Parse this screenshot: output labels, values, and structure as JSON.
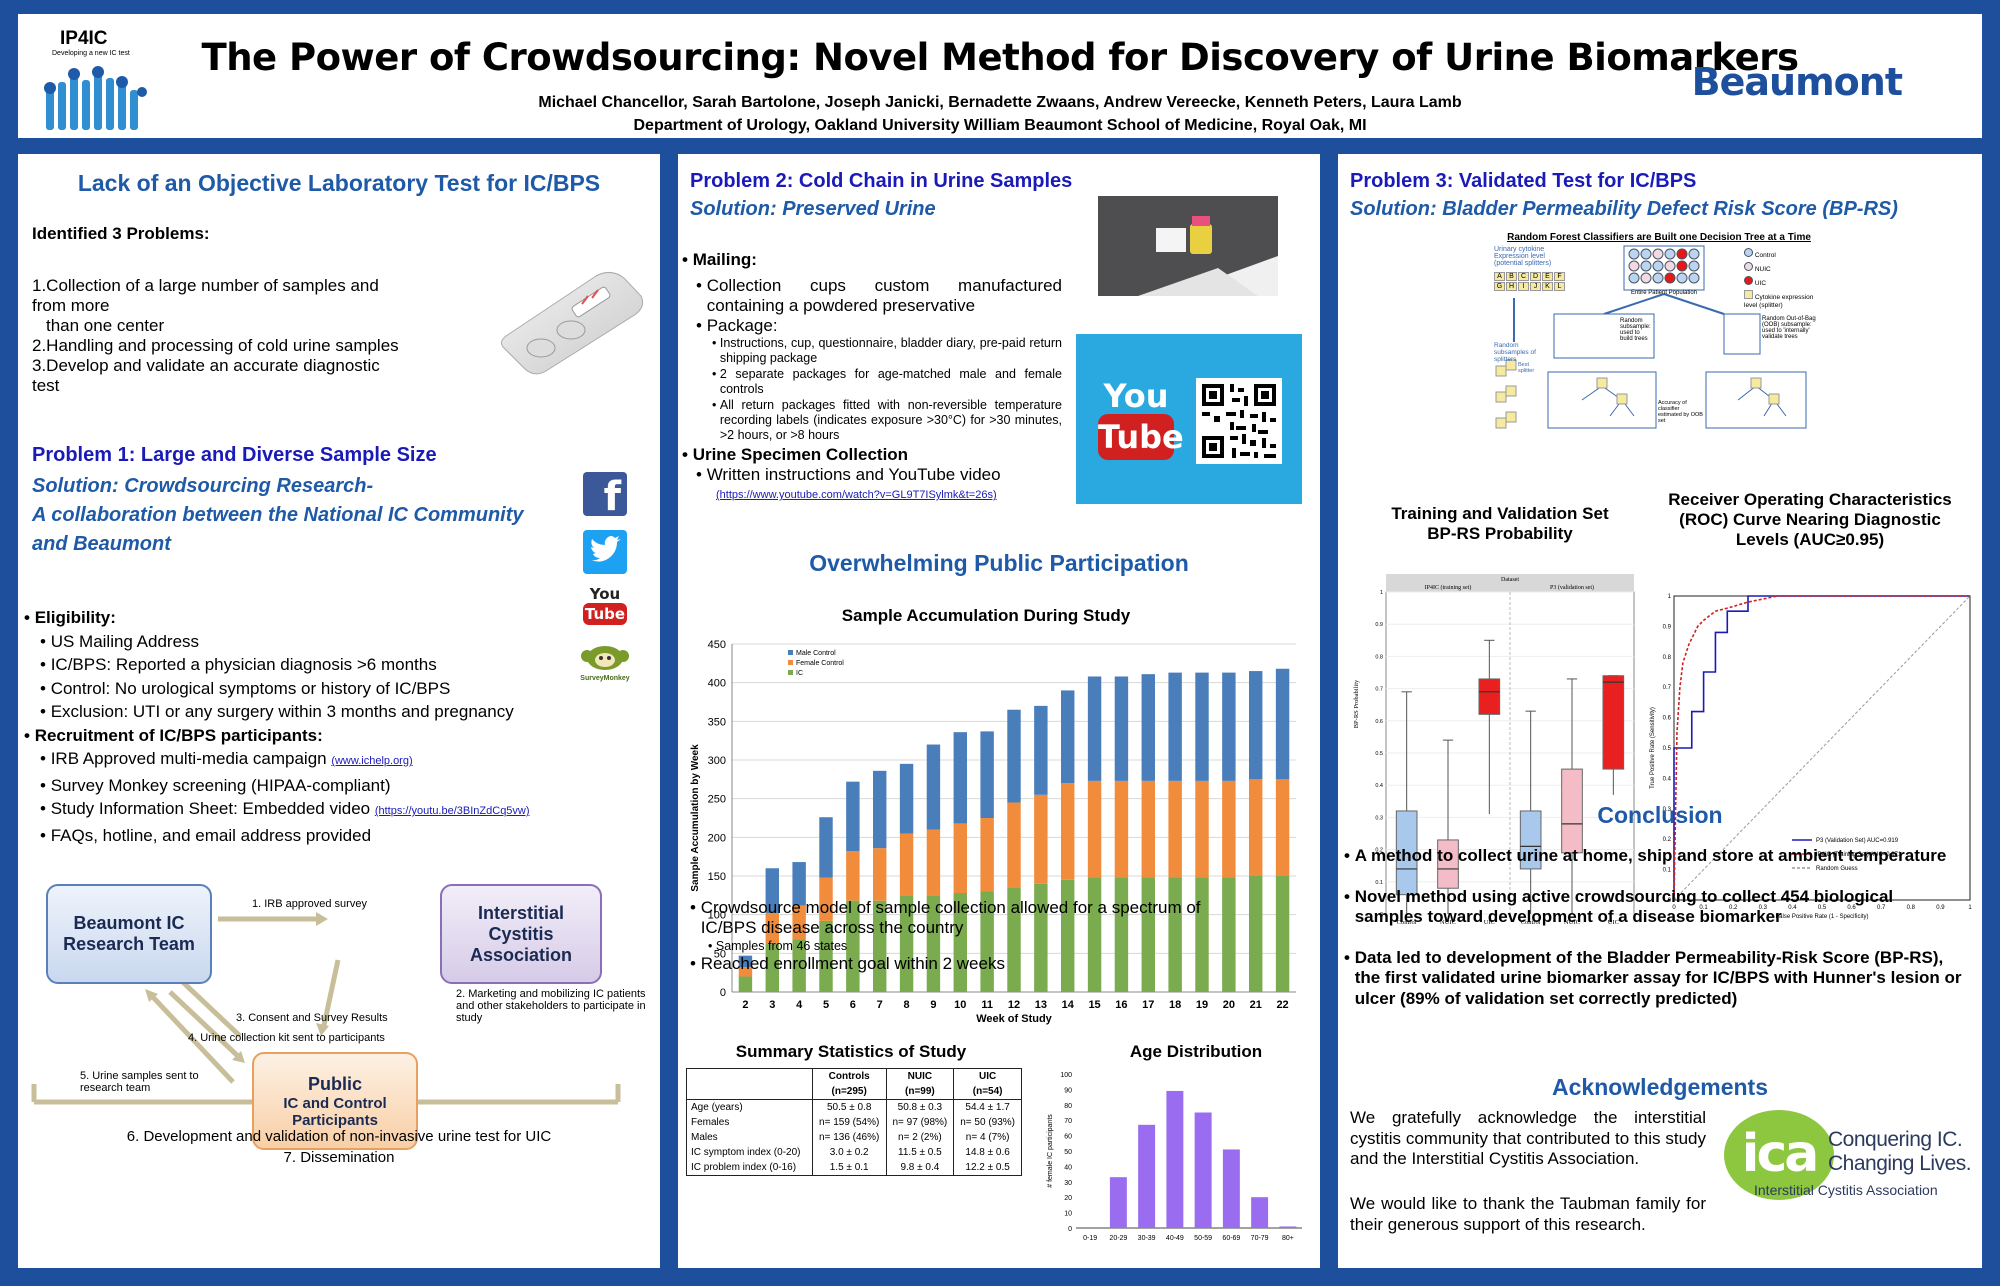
{
  "header": {
    "logo_text": "IP4IC",
    "logo_tagline": "Developing a new IC test",
    "title": "The Power of Crowdsourcing: Novel Method for Discovery of Urine Biomarkers",
    "authors": "Michael Chancellor, Sarah Bartolone, Joseph Janicki, Bernadette Zwaans, Andrew Vereecke, Kenneth Peters, Laura Lamb",
    "department": "Department of Urology, Oakland University William Beaumont School of Medicine, Royal Oak, MI",
    "brand": "Beaumont"
  },
  "col1": {
    "heading": "Lack of an Objective Laboratory Test for IC/BPS",
    "identified": "Identified 3 Problems:",
    "problems": [
      "1.Collection of a large number of samples and from  more",
      "than one center",
      "2.Handling and processing of cold urine samples",
      "3.Develop and validate an accurate diagnostic test"
    ],
    "p1_title": "Problem 1: Large and Diverse Sample Size",
    "p1_sol1": "Solution: Crowdsourcing Research-",
    "p1_sol2": "A collaboration between the National IC Community",
    "p1_sol3": "and Beaumont",
    "eligibility": "Eligibility:",
    "elig_items": [
      "US Mailing Address",
      "IC/BPS: Reported a physician diagnosis >6 months",
      "Control: No urological symptoms or history of IC/BPS",
      "Exclusion: UTI or any surgery within 3 months and pregnancy"
    ],
    "recruitment": "Recruitment of IC/BPS participants:",
    "recruit_1": "IRB Approved multi-media campaign ",
    "recruit_1_link": "(www.ichelp.org)",
    "recruit_2": "Survey Monkey screening (HIPAA-compliant)",
    "recruit_3": "Study Information Sheet: Embedded video ",
    "recruit_3_link": "(https://youtu.be/3BInZdCq5vw)",
    "recruit_4": "FAQs, hotline, and email address provided",
    "social": {
      "youtube_you": "You",
      "youtube_tube": "Tube",
      "surveymonkey": "SurveyMonkey"
    },
    "flow": {
      "box1": "Beaumont IC Research Team",
      "box2": "Interstitial Cystitis Association",
      "box3_1": "Public",
      "box3_2": "IC and Control Participants",
      "step1": "1.  IRB approved survey",
      "step2": "2. Marketing and mobilizing IC patients and other stakeholders to participate in study",
      "step3": "3. Consent and Survey Results",
      "step4": "4. Urine collection kit sent to participants",
      "step5": "5.  Urine samples sent to research team",
      "step6": "6.  Development and validation of non-invasive urine test for UIC",
      "step7": "7.  Dissemination"
    }
  },
  "col2": {
    "p2_title": "Problem 2: Cold Chain in Urine Samples",
    "p2_sol": "Solution: Preserved Urine",
    "mailing": "Mailing:",
    "mail_1": "Collection cups custom manufactured containing a powdered preservative",
    "mail_2": "Package:",
    "pkg_items": [
      "Instructions, cup, questionnaire, bladder diary, pre-paid return shipping package",
      "2 separate packages for age-matched male and female controls",
      "All return packages fitted with non-reversible temperature recording labels (indicates exposure >30°C) for >30 minutes, >2 hours, or >8 hours"
    ],
    "urine_coll": "Urine Specimen Collection",
    "urine_1": "Written instructions and YouTube video",
    "urine_link": "(https://www.youtube.com/watch?v=GL9T7ISylmk&t=26s)",
    "overwhelm": "Overwhelming Public Participation",
    "bullets": [
      "Crowdsource model of sample collection allowed for a spectrum of IC/BPS disease across the country",
      "Samples from 46 states",
      "Reached enrollment goal within 2 weeks"
    ],
    "stats_title": "Summary Statistics of Study",
    "stats_headers": [
      "",
      "Controls",
      "NUIC",
      "UIC"
    ],
    "stats_n": [
      "",
      "(n=295)",
      "(n=99)",
      "(n=54)"
    ],
    "stats_rows": [
      [
        "Age (years)",
        "50.5 ± 0.8",
        "50.8 ± 0.3",
        "54.4 ± 1.7"
      ],
      [
        "Females",
        "n= 159 (54%)",
        "n= 97 (98%)",
        "n= 50 (93%)"
      ],
      [
        "Males",
        "n= 136 (46%)",
        "n= 2 (2%)",
        "n= 4 (7%)"
      ],
      [
        "IC symptom index (0-20)",
        "3.0 ± 0.2",
        "11.5 ± 0.5",
        "14.8 ± 0.6"
      ],
      [
        "IC problem index (0-16)",
        "1.5 ± 0.1",
        "9.8 ± 0.4",
        "12.2 ± 0.5"
      ]
    ]
  },
  "col3": {
    "p3_title": "Problem 3: Validated Test for IC/BPS",
    "p3_sol": "Solution: Bladder Permeability Defect Risk Score (BP-RS)",
    "rf_title": "Random Forest Classifiers are Built one Decision Tree at a Time",
    "rf_left": "Urinary cytokine Expression level (potential splitters)",
    "rf_letters": [
      "A",
      "B",
      "C",
      "D",
      "E",
      "F",
      "G",
      "H",
      "I",
      "J",
      "K",
      "L"
    ],
    "rf_entire": "Entire Patient Population",
    "rf_legend": [
      "Control",
      "NUIC",
      "UIC",
      "Cytokine expression level (splitter)"
    ],
    "rf_random": "Random subsamples of splitters",
    "rf_sub1": "Random subsample: used to build trees",
    "rf_sub2": "Random Out-of-Bag (OOB) subsample: used to 'internally' validate trees",
    "rf_best": "Best splitter",
    "rf_accuracy": "Accuracy of classifier estimated by OOB set",
    "box_title1": "Training and Validation Set",
    "box_title2": "BP-RS Probability",
    "roc_title1": "Receiver Operating Characteristics",
    "roc_title2": "(ROC) Curve Nearing Diagnostic",
    "roc_title3": "Levels (AUC≥0.95)",
    "conclusion": "Conclusion",
    "concl_items": [
      "A method to collect urine at home, ship and store at ambient temperature",
      "Novel method using active crowdsourcing to collect 454 biological samples toward development of a disease biomarker",
      "Data led to development of the Bladder Permeability-Risk Score (BP-RS), the first validated urine biomarker assay for IC/BPS with Hunner's lesion or ulcer (89% of validation set correctly predicted)"
    ],
    "ack": "Acknowledgements",
    "ack_1": "We gratefully acknowledge the interstitial cystitis community that contributed to this study and the Interstitial Cystitis Association.",
    "ack_2": "We would like to thank the Taubman family for their generous support of this research.",
    "ica_logo": "ica",
    "ica_line1": "Conquering IC.",
    "ica_line2": "Changing Lives.",
    "ica_line3": "Interstitial Cystitis Association"
  },
  "chart_data": [
    {
      "type": "bar",
      "stacked": true,
      "title": "Sample Accumulation During Study",
      "xlabel": "Week of Study",
      "ylabel": "Sample Accumulation by Week",
      "categories": [
        "2",
        "3",
        "4",
        "5",
        "6",
        "7",
        "8",
        "9",
        "10",
        "11",
        "12",
        "13",
        "14",
        "15",
        "16",
        "17",
        "18",
        "19",
        "20",
        "21",
        "22"
      ],
      "ylim": [
        0,
        450
      ],
      "yticks": [
        0,
        50,
        100,
        150,
        200,
        250,
        300,
        350,
        400,
        450
      ],
      "series": [
        {
          "name": "IC",
          "color": "#7aab4e",
          "values": [
            20,
            62,
            68,
            92,
            118,
            118,
            125,
            125,
            128,
            130,
            135,
            140,
            145,
            148,
            148,
            148,
            148,
            148,
            148,
            150,
            150
          ]
        },
        {
          "name": "Female Control",
          "color": "#f08c3c",
          "values": [
            12,
            40,
            44,
            56,
            64,
            68,
            80,
            85,
            90,
            95,
            110,
            115,
            125,
            125,
            125,
            125,
            125,
            125,
            125,
            125,
            125
          ]
        },
        {
          "name": "Male Control",
          "color": "#4a7ebb",
          "values": [
            15,
            58,
            56,
            78,
            90,
            100,
            90,
            110,
            118,
            112,
            120,
            115,
            120,
            135,
            135,
            138,
            140,
            140,
            140,
            140,
            143
          ]
        }
      ]
    },
    {
      "type": "bar",
      "title": "Age Distribution",
      "ylabel": "# female IC participants",
      "categories": [
        "0-19",
        "20-29",
        "30-39",
        "40-49",
        "50-59",
        "60-69",
        "70-79",
        "80+"
      ],
      "values": [
        0,
        33,
        67,
        89,
        75,
        51,
        20,
        1
      ],
      "ylim": [
        0,
        100
      ],
      "yticks": [
        0,
        10,
        20,
        30,
        40,
        50,
        60,
        70,
        80,
        90,
        100
      ],
      "color": "#9a6cf0"
    },
    {
      "type": "box",
      "title": "Training and Validation Set BP-RS Probability",
      "ylabel": "BP-RS Probability",
      "groups": [
        "IP4IC (training set)",
        "P3 (validation set)"
      ],
      "facet_label": "Dataset",
      "categories": [
        "Control",
        "NUIC",
        "UIC",
        "Control",
        "NUIC",
        "UIC"
      ],
      "ylim": [
        0,
        1
      ],
      "yticks": [
        0,
        0.1,
        0.2,
        0.3,
        0.4,
        0.5,
        0.6,
        0.7,
        0.8,
        0.9,
        1
      ],
      "boxes": [
        {
          "q1": 0.06,
          "median": 0.14,
          "q3": 0.32,
          "low": 0.0,
          "high": 0.69,
          "color": "#a8c8ec"
        },
        {
          "q1": 0.08,
          "median": 0.14,
          "q3": 0.23,
          "low": 0.0,
          "high": 0.54,
          "color": "#f4bcc6"
        },
        {
          "q1": 0.62,
          "median": 0.69,
          "q3": 0.73,
          "low": 0.31,
          "high": 0.85,
          "color": "#e82020"
        },
        {
          "q1": 0.14,
          "median": 0.21,
          "q3": 0.32,
          "low": 0.0,
          "high": 0.63,
          "color": "#a8c8ec"
        },
        {
          "q1": 0.19,
          "median": 0.28,
          "q3": 0.45,
          "low": 0.0,
          "high": 0.73,
          "color": "#f4bcc6"
        },
        {
          "q1": 0.45,
          "median": 0.72,
          "q3": 0.74,
          "low": 0.37,
          "high": 0.74,
          "color": "#e82020"
        }
      ]
    },
    {
      "type": "line",
      "title": "Receiver Operating Characteristics (ROC) Curve Nearing Diagnostic Levels (AUC≥0.95)",
      "xlabel": "False Positive Rate (1 - Specificity)",
      "ylabel": "True Positive Rate (Sensitivity)",
      "xlim": [
        0,
        1
      ],
      "ylim": [
        0,
        1
      ],
      "ticks": [
        0,
        0.1,
        0.2,
        0.3,
        0.4,
        0.5,
        0.6,
        0.7,
        0.8,
        0.9,
        1
      ],
      "series": [
        {
          "name": "P3 (Validation Set)  AUC=0.919",
          "color": "#1a1ab8",
          "dash": false,
          "x": [
            0,
            0,
            0.06,
            0.06,
            0.1,
            0.1,
            0.14,
            0.14,
            0.18,
            0.18,
            0.25,
            0.25,
            1
          ],
          "y": [
            0,
            0.5,
            0.5,
            0.62,
            0.62,
            0.75,
            0.75,
            0.88,
            0.88,
            0.95,
            0.95,
            1,
            1
          ]
        },
        {
          "name": "IP4IC (Training Set)  AUC=0.971",
          "color": "#d02020",
          "dash": true,
          "x": [
            0,
            0.01,
            0.02,
            0.03,
            0.05,
            0.06,
            0.08,
            0.1,
            0.14,
            0.18,
            0.25,
            0.35,
            1
          ],
          "y": [
            0,
            0.55,
            0.7,
            0.78,
            0.84,
            0.86,
            0.9,
            0.92,
            0.95,
            0.96,
            0.98,
            1,
            1
          ]
        },
        {
          "name": "Random Guess",
          "color": "#999999",
          "dash": true,
          "x": [
            0,
            1
          ],
          "y": [
            0,
            1
          ]
        }
      ]
    }
  ]
}
